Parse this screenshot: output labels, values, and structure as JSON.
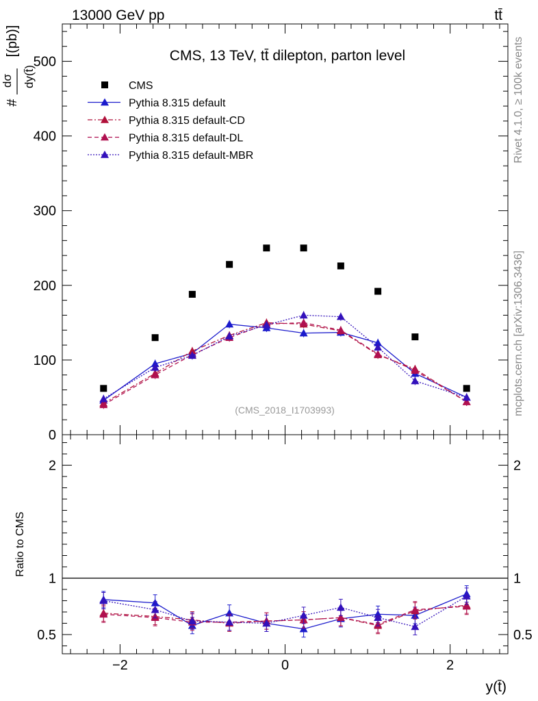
{
  "header": {
    "left": "13000 GeV pp",
    "right": "tt̄"
  },
  "side": {
    "upper": "Rivet 4.1.0, ≥ 100k events",
    "lower": "mcplots.cern.ch [arXiv:1306.3436]"
  },
  "colors": {
    "cms": "#000000",
    "default": "#1a1acc",
    "cd": "#b0103a",
    "dl": "#b01050",
    "mbr": "#3311bb"
  },
  "chart_data": {
    "type": "line",
    "title": "CMS, 13 TeV, tt̄ dilepton, parton level",
    "watermark": "(CMS_2018_I1703993)",
    "xlabel": "y(t̄)",
    "ylabel_top": "#dσ/dy(t̄) [(pb)]",
    "ylabel_bottom": "Ratio to CMS",
    "xlim": [
      -2.7,
      2.7
    ],
    "ylim_top": [
      0,
      550
    ],
    "ylim_bottom": [
      0.33,
      2.27
    ],
    "x_ticks": [
      -2,
      0,
      2
    ],
    "x_tick_labels": [
      "−2",
      "0",
      "2"
    ],
    "y_ticks_top": [
      100,
      200,
      300,
      400,
      500
    ],
    "y_tick_labels_top": [
      "100",
      "200",
      "300",
      "400",
      "500"
    ],
    "y_ticks_bottom": [
      0.5,
      1,
      2
    ],
    "y_tick_labels_bottom": [
      "0.5",
      "1",
      "2"
    ],
    "zero_label": "0",
    "x": [
      -2.2,
      -1.575,
      -1.125,
      -0.675,
      -0.225,
      0.225,
      0.675,
      1.125,
      1.575,
      2.2
    ],
    "series": [
      {
        "name": "CMS",
        "key": "cms",
        "style": "marker",
        "values": [
          62,
          130,
          188,
          228,
          250,
          250,
          226,
          192,
          131,
          62
        ],
        "ratio": [
          1,
          1,
          1,
          1,
          1,
          1,
          1,
          1,
          1,
          1
        ]
      },
      {
        "name": "Pythia 8.315 default",
        "key": "default",
        "style": "solid",
        "values": [
          46,
          95,
          109,
          148,
          143,
          136,
          137,
          123,
          82,
          50
        ],
        "ratio": [
          0.81,
          0.78,
          0.58,
          0.69,
          0.6,
          0.55,
          0.64,
          0.68,
          0.67,
          0.86
        ]
      },
      {
        "name": "Pythia 8.315 default-CD",
        "key": "cd",
        "style": "dashdot",
        "values": [
          42,
          82,
          112,
          133,
          150,
          148,
          139,
          107,
          88,
          44
        ],
        "ratio": [
          0.69,
          0.66,
          0.63,
          0.6,
          0.62,
          0.63,
          0.65,
          0.58,
          0.71,
          0.76
        ]
      },
      {
        "name": "Pythia 8.315 default-DL",
        "key": "dl",
        "style": "dashed",
        "values": [
          40,
          80,
          107,
          130,
          148,
          150,
          140,
          108,
          86,
          44
        ],
        "ratio": [
          0.68,
          0.65,
          0.61,
          0.61,
          0.62,
          0.63,
          0.65,
          0.59,
          0.72,
          0.75
        ]
      },
      {
        "name": "Pythia 8.315 default-MBR",
        "key": "mbr",
        "style": "dotted",
        "values": [
          48,
          90,
          106,
          132,
          147,
          160,
          158,
          117,
          72,
          50
        ],
        "ratio": [
          0.8,
          0.72,
          0.62,
          0.61,
          0.6,
          0.67,
          0.74,
          0.65,
          0.57,
          0.84
        ]
      }
    ]
  }
}
